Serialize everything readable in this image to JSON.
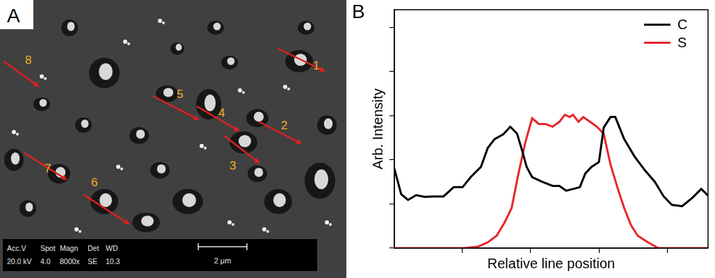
{
  "panel_a": {
    "letter": "A",
    "arrow_labels": [
      1,
      2,
      3,
      4,
      5,
      6,
      7,
      8
    ],
    "info_bar": {
      "header": [
        "Acc.V",
        "Spot",
        "Magn",
        "Det",
        "WD"
      ],
      "values": [
        "20.0 kV",
        "4.0",
        "8000x",
        "SE",
        "10.3"
      ]
    },
    "scale_bar": "2 μm"
  },
  "chart_data": {
    "type": "line",
    "panel_letter": "B",
    "x_label": "Relative line position",
    "y_label": "Arb. Intensity",
    "xlim": [
      0,
      46
    ],
    "xticks": [
      10,
      20,
      30,
      40
    ],
    "ylim": [
      0,
      5.4
    ],
    "yticks": [
      0,
      1,
      2,
      3,
      4,
      5
    ],
    "tick_labels": false,
    "grid": false,
    "legend": "upper right",
    "series": [
      {
        "name": "C",
        "color": "#000000",
        "x": [
          0,
          1,
          2,
          3.2,
          4.4,
          5.7,
          7.2,
          8.7,
          10,
          11.2,
          12.7,
          13.7,
          14.7,
          16,
          17,
          18,
          18.7,
          19.4,
          20.2,
          21.7,
          23.2,
          24.2,
          25.2,
          26.2,
          27.2,
          28,
          28.9,
          30,
          30.7,
          31.7,
          32.4,
          33.7,
          35.2,
          36.7,
          38.2,
          39.5,
          40.7,
          42.2,
          43.7,
          45,
          46
        ],
        "values": [
          1.8,
          1.22,
          1.09,
          1.2,
          1.16,
          1.17,
          1.17,
          1.38,
          1.38,
          1.61,
          1.84,
          2.27,
          2.47,
          2.58,
          2.75,
          2.59,
          2.23,
          1.84,
          1.61,
          1.5,
          1.41,
          1.41,
          1.3,
          1.34,
          1.38,
          1.69,
          1.84,
          1.95,
          2.73,
          2.97,
          2.97,
          2.47,
          2.08,
          1.77,
          1.5,
          1.17,
          0.98,
          0.95,
          1.14,
          1.34,
          1.19
        ]
      },
      {
        "name": "S",
        "color": "#e8262a",
        "x": [
          0,
          10.2,
          12.2,
          13.7,
          15,
          16.2,
          17.2,
          18.2,
          19.2,
          20.2,
          21.2,
          22.2,
          23.2,
          24.2,
          25,
          25.7,
          26.2,
          27,
          27.7,
          28.7,
          29.7,
          30.7,
          31.7,
          32.7,
          33.7,
          34.7,
          35.7,
          37.2,
          38.7,
          46
        ],
        "values": [
          0,
          0,
          0.03,
          0.13,
          0.28,
          0.59,
          0.91,
          1.69,
          2.39,
          2.94,
          2.81,
          2.81,
          2.75,
          2.86,
          3.02,
          2.97,
          3.02,
          2.86,
          2.97,
          2.86,
          2.75,
          2.59,
          1.89,
          1.38,
          0.91,
          0.52,
          0.28,
          0.13,
          0,
          0
        ]
      }
    ]
  }
}
